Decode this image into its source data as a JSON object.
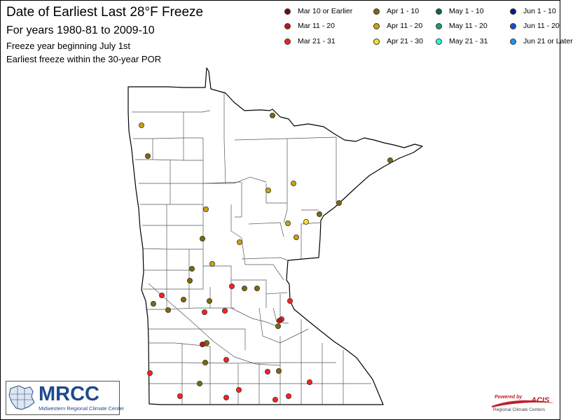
{
  "title": "Date of Earliest Last 28°F Freeze",
  "subtitle": "For years 1980-81 to 2009-10",
  "note_line1": "Freeze year beginning July 1st",
  "note_line2": "Earliest freeze within the 30-year POR",
  "legend": [
    {
      "label": "Mar 10 or Earlier",
      "color": "#7a0a0a"
    },
    {
      "label": "Mar 11 - 20",
      "color": "#c4140e"
    },
    {
      "label": "Mar 21 - 31",
      "color": "#ff2020"
    },
    {
      "label": "Apr 1 - 10",
      "color": "#7a6a0c"
    },
    {
      "label": "Apr 11 - 20",
      "color": "#c8a410"
    },
    {
      "label": "Apr 21 - 30",
      "color": "#ffe020"
    },
    {
      "label": "May 1 - 10",
      "color": "#0a6a4a"
    },
    {
      "label": "May 11 - 20",
      "color": "#14a07a"
    },
    {
      "label": "May 21 - 31",
      "color": "#20ffe0"
    },
    {
      "label": "Jun 1 - 10",
      "color": "#0a1a8a"
    },
    {
      "label": "Jun 11 - 20",
      "color": "#1450d0"
    },
    {
      "label": "Jun 21 or Later",
      "color": "#2090ff"
    }
  ],
  "stations": [
    {
      "category": "Apr 11 - 20"
    },
    {
      "category": "Apr 1 - 10"
    },
    {
      "category": "Apr 1 - 10"
    },
    {
      "category": "Apr 11 - 20"
    },
    {
      "category": "Apr 11 - 20"
    },
    {
      "category": "Apr 1 - 10"
    },
    {
      "category": "Apr 11 - 20"
    },
    {
      "category": "Apr 1 - 10"
    },
    {
      "category": "Apr 11 - 20"
    },
    {
      "category": "Apr 21 - 30"
    },
    {
      "category": "Apr 11 - 20"
    },
    {
      "category": "Apr 1 - 10"
    },
    {
      "category": "Apr 11 - 20"
    },
    {
      "category": "Apr 1 - 10"
    },
    {
      "category": "Apr 11 - 20"
    },
    {
      "category": "Apr 1 - 10"
    },
    {
      "category": "Apr 1 - 10"
    },
    {
      "category": "Mar 21 - 31"
    },
    {
      "category": "Apr 1 - 10"
    },
    {
      "category": "Apr 1 - 10"
    },
    {
      "category": "Apr 1 - 10"
    },
    {
      "category": "Apr 1 - 10"
    },
    {
      "category": "Apr 1 - 10"
    },
    {
      "category": "Mar 21 - 31"
    },
    {
      "category": "Apr 1 - 10"
    },
    {
      "category": "Mar 21 - 31"
    },
    {
      "category": "Mar 21 - 31"
    },
    {
      "category": "Mar 21 - 31"
    },
    {
      "category": "Mar 21 - 31"
    },
    {
      "category": "Apr 1 - 10"
    },
    {
      "category": "Mar 11 - 20"
    },
    {
      "category": "Apr 1 - 10"
    },
    {
      "category": "Mar 11 - 20"
    },
    {
      "category": "Mar 21 - 31"
    },
    {
      "category": "Apr 1 - 10"
    },
    {
      "category": "Apr 1 - 10"
    },
    {
      "category": "Mar 21 - 31"
    },
    {
      "category": "Mar 21 - 31"
    },
    {
      "category": "Apr 1 - 10"
    },
    {
      "category": "Mar 21 - 31"
    },
    {
      "category": "Mar 21 - 31"
    },
    {
      "category": "Mar 21 - 31"
    },
    {
      "category": "Mar 21 - 31"
    },
    {
      "category": "Mar 21 - 31"
    },
    {
      "category": "Mar 21 - 31"
    }
  ],
  "logos": {
    "mrcc": "MRCC",
    "mrcc_sub": "Midwestern Regional Climate Center",
    "acis_powered": "Powered by",
    "acis": "ACIS",
    "acis_sub": "Regional Climate Centers"
  }
}
